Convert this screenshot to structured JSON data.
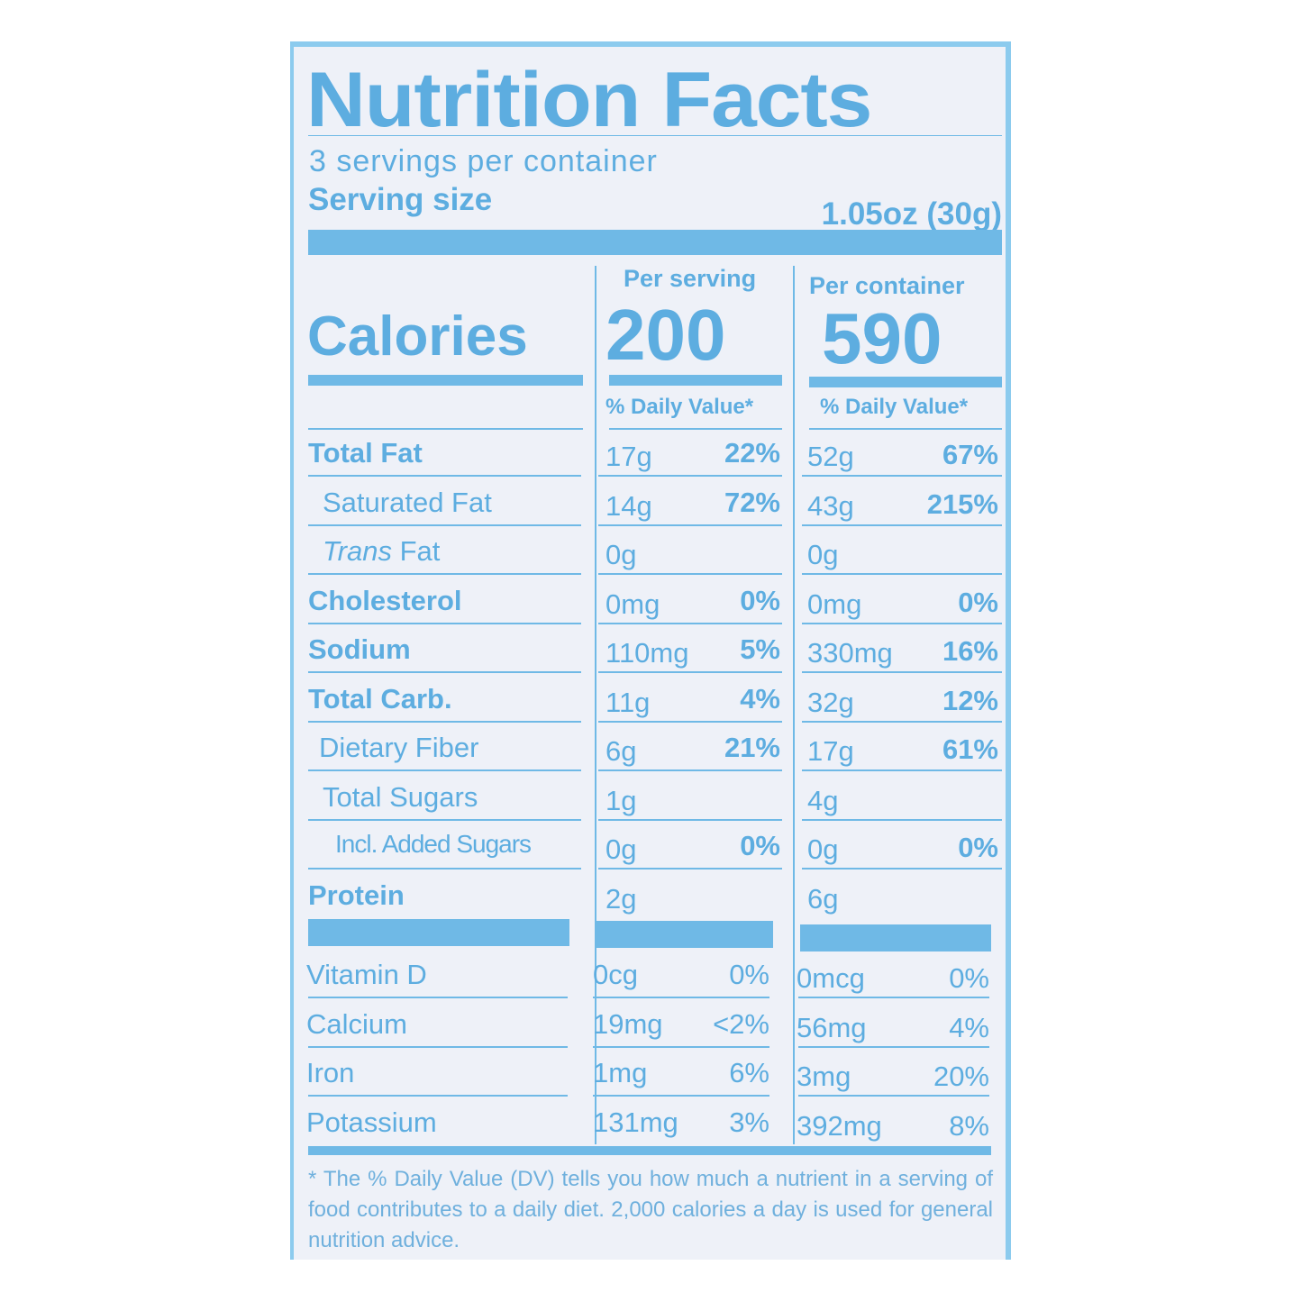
{
  "title": "Nutrition Facts",
  "servings_per_container": "3 servings per container",
  "serving_size": {
    "label": "Serving size",
    "value": "1.05oz (30g)"
  },
  "columns": {
    "per_serving": "Per serving",
    "per_container": "Per container"
  },
  "calories": {
    "label": "Calories",
    "per_serving": "200",
    "per_container": "590"
  },
  "daily_value_header": "% Daily Value*",
  "nutrients": [
    {
      "label": "Total Fat",
      "serving_amount": "17g",
      "serving_dv": "22%",
      "container_amount": "52g",
      "container_dv": "67%"
    },
    {
      "label": "Saturated Fat",
      "serving_amount": "14g",
      "serving_dv": "72%",
      "container_amount": "43g",
      "container_dv": "215%"
    },
    {
      "label_italic": "Trans",
      "label": " Fat",
      "serving_amount": "0g",
      "serving_dv": "",
      "container_amount": "0g",
      "container_dv": ""
    },
    {
      "label": "Cholesterol",
      "serving_amount": "0mg",
      "serving_dv": "0%",
      "container_amount": "0mg",
      "container_dv": "0%"
    },
    {
      "label": "Sodium",
      "serving_amount": "110mg",
      "serving_dv": "5%",
      "container_amount": "330mg",
      "container_dv": "16%"
    },
    {
      "label": "Total Carb.",
      "serving_amount": "11g",
      "serving_dv": "4%",
      "container_amount": "32g",
      "container_dv": "12%"
    },
    {
      "label": "Dietary Fiber",
      "serving_amount": "6g",
      "serving_dv": "21%",
      "container_amount": "17g",
      "container_dv": "61%"
    },
    {
      "label": "Total Sugars",
      "serving_amount": "1g",
      "serving_dv": "",
      "container_amount": "4g",
      "container_dv": ""
    },
    {
      "label": "Incl. Added Sugars",
      "serving_amount": "0g",
      "serving_dv": "0%",
      "container_amount": "0g",
      "container_dv": "0%"
    },
    {
      "label": "Protein",
      "serving_amount": "2g",
      "serving_dv": "",
      "container_amount": "6g",
      "container_dv": ""
    }
  ],
  "vitamins": [
    {
      "label": "Vitamin D",
      "serving_amount": "0cg",
      "serving_dv": "0%",
      "container_amount": "0mcg",
      "container_dv": "0%"
    },
    {
      "label": "Calcium",
      "serving_amount": "19mg",
      "serving_dv": "<2%",
      "container_amount": "56mg",
      "container_dv": "4%"
    },
    {
      "label": "Iron",
      "serving_amount": "1mg",
      "serving_dv": "6%",
      "container_amount": "3mg",
      "container_dv": "20%"
    },
    {
      "label": "Potassium",
      "serving_amount": "131mg",
      "serving_dv": "3%",
      "container_amount": "392mg",
      "container_dv": "8%"
    }
  ],
  "footnote": "* The % Daily Value (DV) tells you how much a nutrient in a serving of food contributes to a daily diet. 2,000 calories a day is used for general nutrition advice.",
  "colors": {
    "ink": "#5dade0",
    "border": "#8ccbee",
    "background": "#eef1f8"
  }
}
